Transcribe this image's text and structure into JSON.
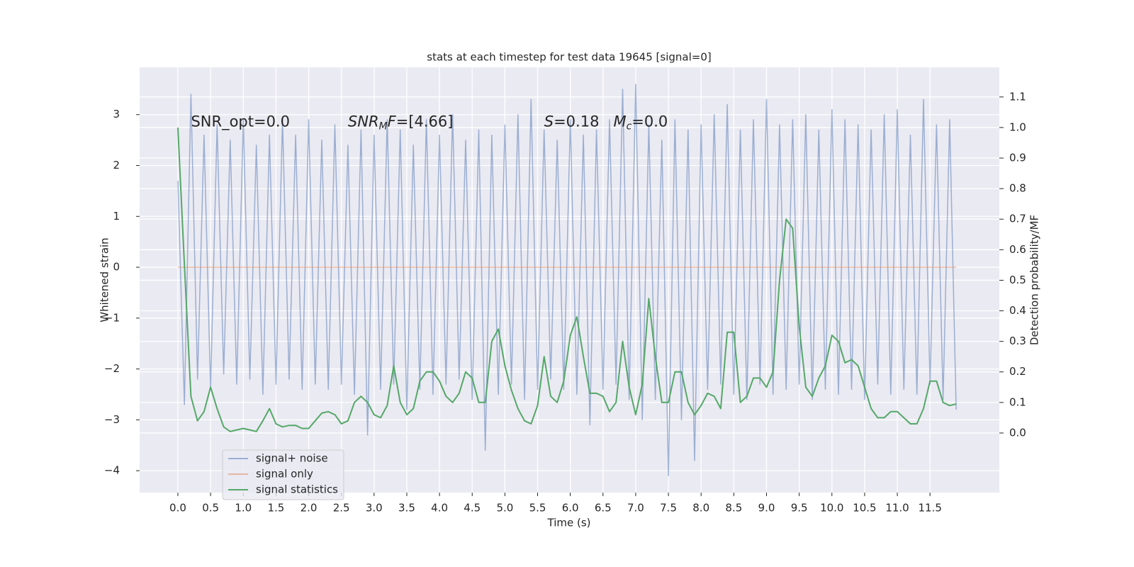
{
  "chart_data": {
    "type": "line",
    "title": "stats at each timestep for test data 19645 [signal=0]",
    "xlabel": "Time (s)",
    "ylabel": "Whitened strain",
    "y2label": "Detection probability/MF",
    "annotations": [
      {
        "x": 0.2,
        "y": 2.85,
        "segments": [
          {
            "text": "SNR_opt=0.0"
          }
        ]
      },
      {
        "x": 2.6,
        "y": 2.85,
        "segments": [
          {
            "text": "SNR",
            "italic": true
          },
          {
            "text": "M",
            "italic": true,
            "sub": true
          },
          {
            "text": "F",
            "italic": true
          },
          {
            "text": "=[4.66]"
          }
        ]
      },
      {
        "x": 5.6,
        "y": 2.85,
        "segments": [
          {
            "text": "S",
            "italic": true
          },
          {
            "text": "=0.18   "
          },
          {
            "text": "M",
            "italic": true
          },
          {
            "text": "c",
            "italic": true,
            "sub": true
          },
          {
            "text": "=0.0"
          }
        ]
      }
    ],
    "x": [
      0.0,
      0.1,
      0.2,
      0.3,
      0.4,
      0.5,
      0.6,
      0.7,
      0.8,
      0.9,
      1.0,
      1.1,
      1.2,
      1.3,
      1.4,
      1.5,
      1.6,
      1.7,
      1.8,
      1.9,
      2.0,
      2.1,
      2.2,
      2.3,
      2.4,
      2.5,
      2.6,
      2.7,
      2.8,
      2.9,
      3.0,
      3.1,
      3.2,
      3.3,
      3.4,
      3.5,
      3.6,
      3.7,
      3.8,
      3.9,
      4.0,
      4.1,
      4.2,
      4.3,
      4.4,
      4.5,
      4.6,
      4.7,
      4.8,
      4.9,
      5.0,
      5.1,
      5.2,
      5.3,
      5.4,
      5.5,
      5.6,
      5.7,
      5.8,
      5.9,
      6.0,
      6.1,
      6.2,
      6.3,
      6.4,
      6.5,
      6.6,
      6.7,
      6.8,
      6.9,
      7.0,
      7.1,
      7.2,
      7.3,
      7.4,
      7.5,
      7.6,
      7.7,
      7.8,
      7.9,
      8.0,
      8.1,
      8.2,
      8.3,
      8.4,
      8.5,
      8.6,
      8.7,
      8.8,
      8.9,
      9.0,
      9.1,
      9.2,
      9.3,
      9.4,
      9.5,
      9.6,
      9.7,
      9.8,
      9.9,
      10.0,
      10.1,
      10.2,
      10.3,
      10.4,
      10.5,
      10.6,
      10.7,
      10.8,
      10.9,
      11.0,
      11.1,
      11.2,
      11.3,
      11.4,
      11.5,
      11.6,
      11.7,
      11.8,
      11.9
    ],
    "series": [
      {
        "name": "signal+ noise",
        "color": "#4c72b0",
        "opacity": 0.5,
        "values": [
          1.7,
          -2.7,
          3.4,
          -2.2,
          2.6,
          -2.4,
          2.8,
          -2.1,
          2.5,
          -2.3,
          2.9,
          -2.2,
          2.4,
          -2.5,
          2.6,
          -2.3,
          2.9,
          -2.2,
          2.6,
          -2.4,
          2.9,
          -2.3,
          2.5,
          -2.4,
          2.8,
          -2.3,
          2.4,
          -2.5,
          2.7,
          -3.3,
          2.6,
          -2.4,
          2.9,
          -2.3,
          2.7,
          -2.8,
          2.4,
          -2.4,
          2.9,
          -2.5,
          2.6,
          -2.3,
          3.0,
          -2.2,
          2.5,
          -2.6,
          2.7,
          -3.6,
          2.6,
          -2.5,
          2.8,
          -2.3,
          3.0,
          -2.6,
          3.3,
          -2.4,
          2.7,
          -2.2,
          2.5,
          -2.4,
          2.9,
          -2.5,
          2.6,
          -3.1,
          2.7,
          -2.4,
          2.9,
          -2.3,
          3.5,
          -2.6,
          3.6,
          -3.0,
          2.8,
          -2.6,
          2.5,
          -4.1,
          2.9,
          -3.0,
          2.7,
          -3.8,
          2.8,
          -2.4,
          3.0,
          -2.3,
          3.2,
          -2.5,
          2.7,
          -2.6,
          2.9,
          -2.3,
          3.3,
          -2.5,
          2.8,
          -2.4,
          2.9,
          -2.3,
          3.0,
          -2.6,
          2.7,
          -2.4,
          3.1,
          -2.5,
          2.9,
          -2.4,
          2.8,
          -2.6,
          2.7,
          -2.3,
          3.0,
          -2.5,
          3.1,
          -2.4,
          2.6,
          -2.5,
          3.3,
          -2.3,
          2.8,
          -2.6,
          2.9,
          -2.8
        ]
      },
      {
        "name": "signal only",
        "color": "#dd8452",
        "opacity": 0.5,
        "values": [
          0,
          0,
          0,
          0,
          0,
          0,
          0,
          0,
          0,
          0,
          0,
          0,
          0,
          0,
          0,
          0,
          0,
          0,
          0,
          0,
          0,
          0,
          0,
          0,
          0,
          0,
          0,
          0,
          0,
          0,
          0,
          0,
          0,
          0,
          0,
          0,
          0,
          0,
          0,
          0,
          0,
          0,
          0,
          0,
          0,
          0,
          0,
          0,
          0,
          0,
          0,
          0,
          0,
          0,
          0,
          0,
          0,
          0,
          0,
          0,
          0,
          0,
          0,
          0,
          0,
          0,
          0,
          0,
          0,
          0,
          0,
          0,
          0,
          0,
          0,
          0,
          0,
          0,
          0,
          0,
          0,
          0,
          0,
          0,
          0,
          0,
          0,
          0,
          0,
          0,
          0,
          0,
          0,
          0,
          0,
          0,
          0,
          0,
          0,
          0,
          0,
          0,
          0,
          0,
          0,
          0,
          0,
          0,
          0,
          0,
          0,
          0,
          0,
          0,
          0,
          0,
          0,
          0,
          0,
          0
        ]
      },
      {
        "name": "signal statistics",
        "color": "#55a868",
        "opacity": 1,
        "axis": "y2",
        "values": [
          1.0,
          0.55,
          0.12,
          0.04,
          0.07,
          0.15,
          0.08,
          0.02,
          0.005,
          0.01,
          0.015,
          0.01,
          0.005,
          0.04,
          0.08,
          0.03,
          0.02,
          0.025,
          0.025,
          0.015,
          0.015,
          0.04,
          0.065,
          0.07,
          0.06,
          0.03,
          0.04,
          0.1,
          0.12,
          0.1,
          0.06,
          0.05,
          0.09,
          0.22,
          0.1,
          0.06,
          0.08,
          0.17,
          0.2,
          0.2,
          0.17,
          0.12,
          0.1,
          0.13,
          0.2,
          0.18,
          0.1,
          0.1,
          0.3,
          0.34,
          0.22,
          0.14,
          0.08,
          0.04,
          0.03,
          0.09,
          0.25,
          0.12,
          0.1,
          0.17,
          0.32,
          0.38,
          0.25,
          0.13,
          0.13,
          0.12,
          0.07,
          0.1,
          0.3,
          0.15,
          0.06,
          0.16,
          0.44,
          0.25,
          0.1,
          0.1,
          0.2,
          0.2,
          0.1,
          0.06,
          0.09,
          0.13,
          0.12,
          0.08,
          0.33,
          0.33,
          0.1,
          0.12,
          0.18,
          0.18,
          0.15,
          0.2,
          0.5,
          0.7,
          0.67,
          0.35,
          0.15,
          0.12,
          0.18,
          0.22,
          0.32,
          0.3,
          0.23,
          0.24,
          0.22,
          0.15,
          0.08,
          0.05,
          0.05,
          0.07,
          0.07,
          0.05,
          0.03,
          0.03,
          0.08,
          0.17,
          0.17,
          0.1,
          0.09,
          0.095
        ]
      }
    ],
    "xlim": [
      -0.585,
      12.56
    ],
    "ylim": [
      -4.43,
      3.93
    ],
    "y2lim": [
      -0.195,
      1.197
    ],
    "xticks": [
      {
        "value": 0,
        "label": "0.0"
      },
      {
        "value": 0.5,
        "label": "0.5"
      },
      {
        "value": 1,
        "label": "1.0"
      },
      {
        "value": 1.5,
        "label": "1.5"
      },
      {
        "value": 2,
        "label": "2.0"
      },
      {
        "value": 2.5,
        "label": "2.5"
      },
      {
        "value": 3,
        "label": "3.0"
      },
      {
        "value": 3.5,
        "label": "3.5"
      },
      {
        "value": 4,
        "label": "4.0"
      },
      {
        "value": 4.5,
        "label": "4.5"
      },
      {
        "value": 5,
        "label": "5.0"
      },
      {
        "value": 5.5,
        "label": "5.5"
      },
      {
        "value": 6,
        "label": "6.0"
      },
      {
        "value": 6.5,
        "label": "6.5"
      },
      {
        "value": 7,
        "label": "7.0"
      },
      {
        "value": 7.5,
        "label": "7.5"
      },
      {
        "value": 8,
        "label": "8.0"
      },
      {
        "value": 8.5,
        "label": "8.5"
      },
      {
        "value": 9,
        "label": "9.0"
      },
      {
        "value": 9.5,
        "label": "9.5"
      },
      {
        "value": 10,
        "label": "10.0"
      },
      {
        "value": 10.5,
        "label": "10.5"
      },
      {
        "value": 11,
        "label": "11.0"
      },
      {
        "value": 11.5,
        "label": "11.5"
      }
    ],
    "yticks": [
      {
        "value": -4,
        "label": "−4"
      },
      {
        "value": -3,
        "label": "−3"
      },
      {
        "value": -2,
        "label": "−2"
      },
      {
        "value": -1,
        "label": "−1"
      },
      0,
      1,
      2,
      3
    ],
    "y2ticks": [
      {
        "value": 0,
        "label": "0.0"
      },
      {
        "value": 0.1,
        "label": "0.1"
      },
      {
        "value": 0.2,
        "label": "0.2"
      },
      {
        "value": 0.3,
        "label": "0.3"
      },
      {
        "value": 0.4,
        "label": "0.4"
      },
      {
        "value": 0.5,
        "label": "0.5"
      },
      {
        "value": 0.6,
        "label": "0.6"
      },
      {
        "value": 0.7,
        "label": "0.7"
      },
      {
        "value": 0.8,
        "label": "0.8"
      },
      {
        "value": 0.9,
        "label": "0.9"
      },
      {
        "value": 1,
        "label": "1.0"
      },
      {
        "value": 1.1,
        "label": "1.1"
      }
    ],
    "grid": true,
    "legend_loc": "lower left"
  }
}
